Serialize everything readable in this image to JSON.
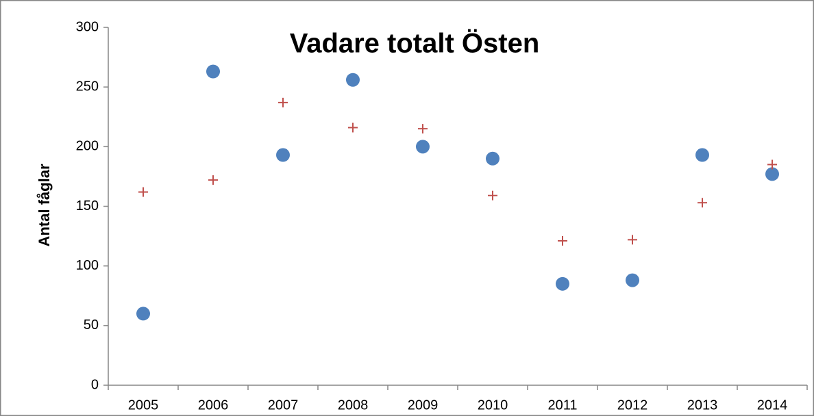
{
  "chart_data": {
    "type": "scatter",
    "title": "Vadare totalt Östen",
    "y_label": "Antal fåglar",
    "categories": [
      "2005",
      "2006",
      "2007",
      "2008",
      "2009",
      "2010",
      "2011",
      "2012",
      "2013",
      "2014"
    ],
    "series": [
      {
        "color": "#4f81bd",
        "marker": "circle",
        "values": [
          60,
          263,
          193,
          256,
          200,
          190,
          85,
          88,
          193,
          177
        ]
      },
      {
        "color": "#c0504d",
        "marker": "plus",
        "values": [
          162,
          172,
          237,
          216,
          215,
          159,
          121,
          122,
          153,
          185
        ]
      }
    ],
    "ylim": [
      0,
      300
    ],
    "yticks": [
      0,
      50,
      100,
      150,
      200,
      250,
      300
    ],
    "grid": false
  }
}
